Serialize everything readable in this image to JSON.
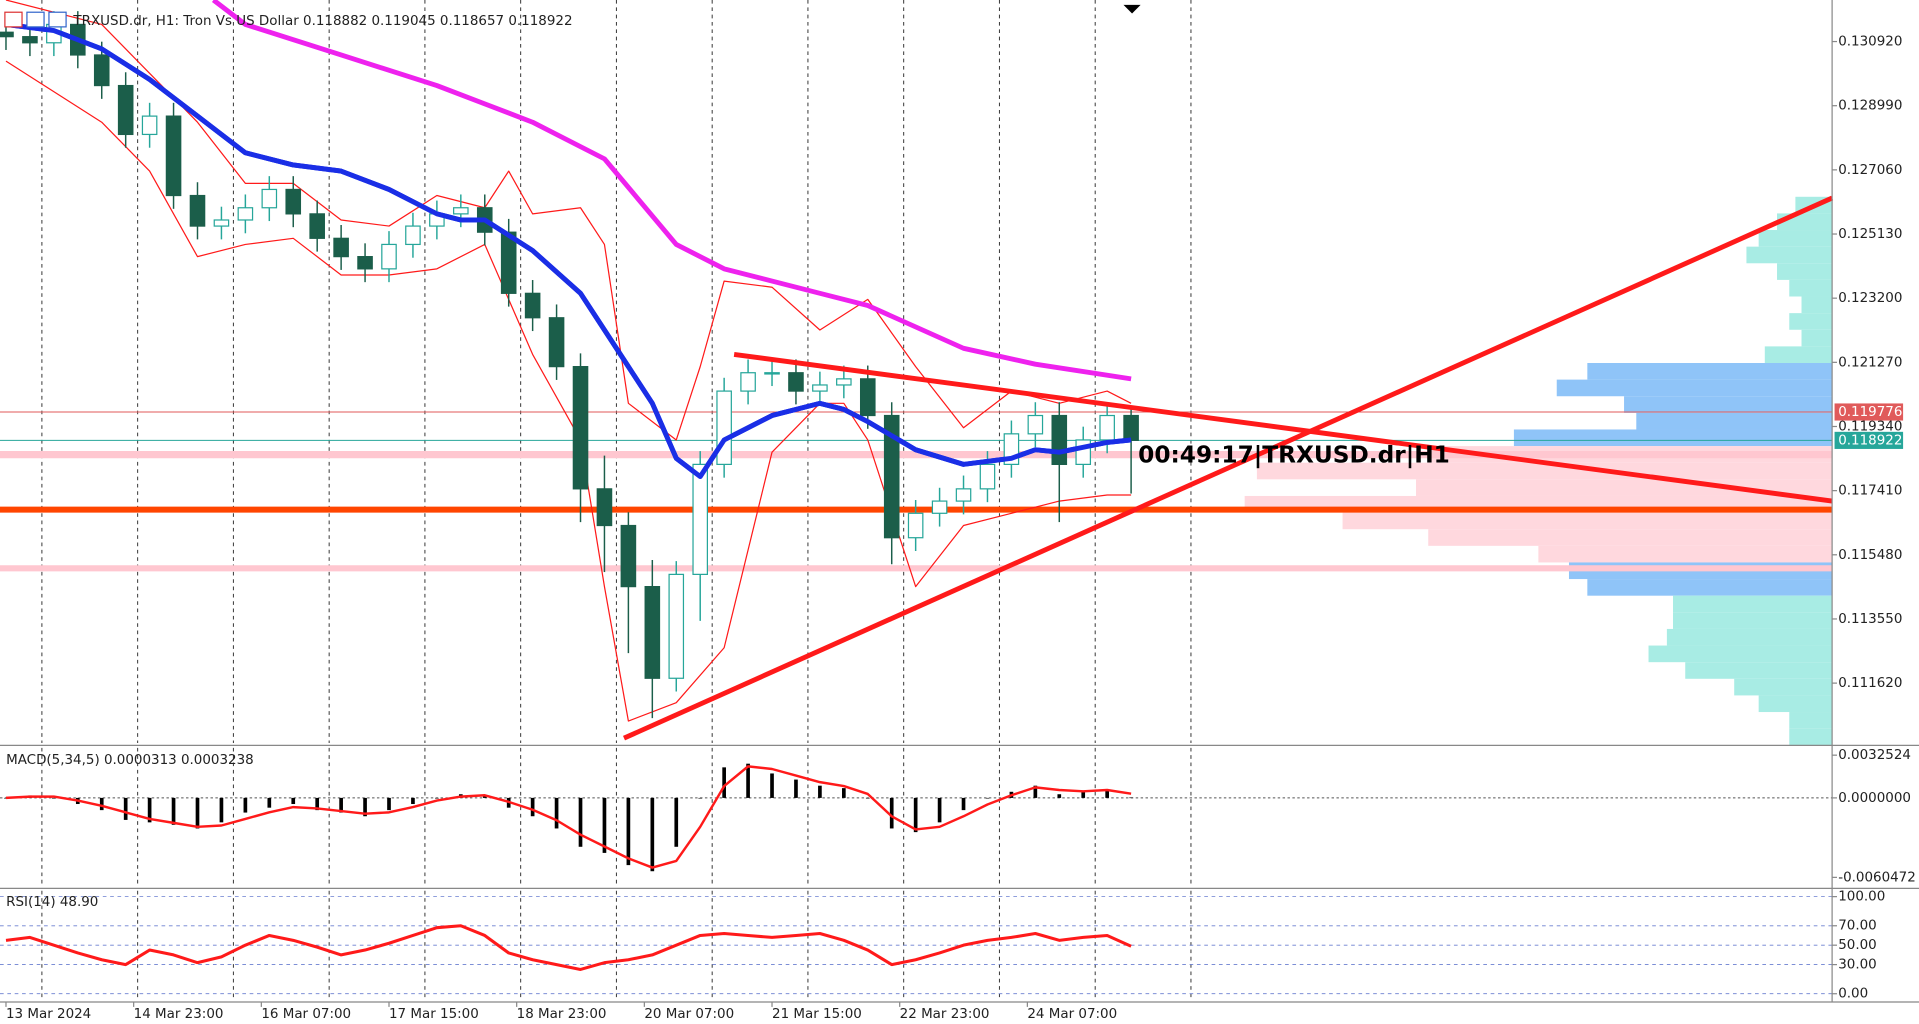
{
  "chart_data": [
    {
      "type": "candlestick",
      "title": "TRXUSD.dr, H1:  Tron Vs US Dollar  0.118882 0.119045 0.118657 0.118922",
      "annotation": "00:49:17|TRXUSD.dr|H1",
      "x": [
        0,
        6,
        12,
        18,
        24,
        30,
        36,
        42,
        48,
        54,
        60,
        66,
        72,
        78,
        84,
        90,
        96,
        102,
        108,
        114,
        120,
        126,
        132,
        138,
        144,
        150,
        156,
        162,
        168,
        174,
        180,
        186,
        192,
        198,
        204,
        210,
        216,
        222,
        228,
        234,
        240,
        246,
        252,
        258,
        264,
        270,
        276,
        282
      ],
      "open": [
        0.1312,
        0.131067,
        0.130883,
        0.131435,
        0.130516,
        0.129596,
        0.128126,
        0.128677,
        0.126288,
        0.125369,
        0.125552,
        0.12592,
        0.126471,
        0.125736,
        0.125001,
        0.12445,
        0.124082,
        0.124817,
        0.125369,
        0.125736,
        0.12592,
        0.125185,
        0.123346,
        0.122611,
        0.121141,
        0.117464,
        0.116361,
        0.114523,
        0.111766,
        0.114891,
        0.1182,
        0.120405,
        0.120957,
        0.120957,
        0.120405,
        0.120589,
        0.120773,
        0.11967,
        0.115994,
        0.116729,
        0.117096,
        0.117464,
        0.1182,
        0.119119,
        0.11967,
        0.1182,
        0.118935,
        0.11967
      ],
      "high": [
        0.1316,
        0.131467,
        0.131835,
        0.131835,
        0.130916,
        0.129996,
        0.129077,
        0.129077,
        0.126688,
        0.125952,
        0.12632,
        0.126871,
        0.126871,
        0.126136,
        0.125401,
        0.12485,
        0.125217,
        0.125769,
        0.126136,
        0.12632,
        0.12632,
        0.125585,
        0.123746,
        0.123011,
        0.121541,
        0.118464,
        0.116761,
        0.115323,
        0.115291,
        0.1186,
        0.120805,
        0.121357,
        0.121357,
        0.121357,
        0.120989,
        0.121173,
        0.121173,
        0.12007,
        0.117129,
        0.117496,
        0.117864,
        0.1186,
        0.119519,
        0.12007,
        0.12007,
        0.119335,
        0.12007,
        0.11997
      ],
      "low": [
        0.130667,
        0.130483,
        0.130483,
        0.130116,
        0.129196,
        0.127726,
        0.127726,
        0.125888,
        0.124969,
        0.124969,
        0.125152,
        0.12552,
        0.125336,
        0.124601,
        0.12405,
        0.123682,
        0.123682,
        0.124417,
        0.124969,
        0.125336,
        0.124785,
        0.122946,
        0.122211,
        0.120741,
        0.116464,
        0.114961,
        0.112523,
        0.110566,
        0.111366,
        0.113491,
        0.1178,
        0.120005,
        0.120557,
        0.120005,
        0.120005,
        0.120189,
        0.11927,
        0.115194,
        0.115594,
        0.116329,
        0.116696,
        0.117064,
        0.1178,
        0.118719,
        0.116464,
        0.1178,
        0.118535,
        0.117322
      ],
      "close": [
        0.131067,
        0.130883,
        0.131435,
        0.130516,
        0.129596,
        0.128126,
        0.128677,
        0.126288,
        0.125369,
        0.125552,
        0.12592,
        0.126471,
        0.125736,
        0.125001,
        0.12445,
        0.124082,
        0.124817,
        0.125369,
        0.125736,
        0.12592,
        0.125185,
        0.123346,
        0.122611,
        0.121141,
        0.117464,
        0.116361,
        0.114523,
        0.111766,
        0.114891,
        0.1182,
        0.120405,
        0.120957,
        0.120957,
        0.120405,
        0.120589,
        0.120773,
        0.11967,
        0.115994,
        0.116729,
        0.117096,
        0.117464,
        0.1182,
        0.119119,
        0.11967,
        0.1182,
        0.118935,
        0.11967,
        0.118922
      ],
      "up_color": "#26a69a",
      "down_color": "#1b5e4a",
      "xlim": [
        -1.5,
        457.7
      ],
      "ylim": [
        0.10982,
        0.13217
      ],
      "xticks": [
        {
          "value": 0,
          "label": "13 Mar 2024"
        },
        {
          "value": 32,
          "label": "14 Mar 23:00"
        },
        {
          "value": 64,
          "label": "16 Mar 07:00"
        },
        {
          "value": 96,
          "label": "17 Mar 15:00"
        },
        {
          "value": 128,
          "label": "18 Mar 23:00"
        },
        {
          "value": 160,
          "label": "20 Mar 07:00"
        },
        {
          "value": 192,
          "label": "21 Mar 15:00"
        },
        {
          "value": 224,
          "label": "22 Mar 23:00"
        },
        {
          "value": 256,
          "label": "24 Mar 07:00"
        }
      ],
      "yticks": [
        {
          "value": 0.13092,
          "label": "0.130920"
        },
        {
          "value": 0.12899,
          "label": "0.128990"
        },
        {
          "value": 0.12706,
          "label": "0.127060"
        },
        {
          "value": 0.12513,
          "label": "0.125130"
        },
        {
          "value": 0.1232,
          "label": "0.123200"
        },
        {
          "value": 0.12127,
          "label": "0.121270"
        },
        {
          "value": 0.11934,
          "label": "0.119340"
        },
        {
          "value": 0.11741,
          "label": "0.117410"
        },
        {
          "value": 0.11548,
          "label": "0.115480"
        },
        {
          "value": 0.11355,
          "label": "0.113550"
        },
        {
          "value": 0.11162,
          "label": "0.111620"
        }
      ],
      "xgrid": [
        9,
        33,
        57,
        81,
        105,
        129,
        153,
        177,
        201,
        225,
        249,
        273,
        297
      ],
      "series": [
        {
          "color": "#ff1a1a",
          "line_width": 1,
          "x": [
            0,
            24,
            48,
            60,
            72,
            84,
            96,
            108,
            120,
            126,
            132,
            144,
            150,
            156,
            168,
            174,
            180,
            192,
            204,
            216,
            228,
            240,
            252,
            264,
            276,
            282
          ],
          "values": [
            0.13217,
            0.131435,
            0.128493,
            0.126655,
            0.126655,
            0.125552,
            0.125369,
            0.126288,
            0.12592,
            0.127023,
            0.125736,
            0.12592,
            0.124817,
            0.120037,
            0.118935,
            0.121141,
            0.123714,
            0.12353,
            0.122243,
            0.123163,
            0.121141,
            0.119302,
            0.120405,
            0.120037,
            0.120405,
            0.120037
          ]
        },
        {
          "color": "#ff1a1a",
          "line_width": 1,
          "x": [
            0,
            24,
            36,
            48,
            60,
            72,
            84,
            96,
            108,
            120,
            132,
            144,
            150,
            156,
            168,
            180,
            192,
            204,
            210,
            216,
            228,
            240,
            252,
            264,
            276,
            282
          ],
          "values": [
            0.130332,
            0.128493,
            0.127023,
            0.12445,
            0.124817,
            0.125001,
            0.123898,
            0.123898,
            0.124082,
            0.124817,
            0.121508,
            0.118935,
            0.114523,
            0.110479,
            0.111031,
            0.112684,
            0.118567,
            0.120037,
            0.120037,
            0.118935,
            0.114523,
            0.116361,
            0.116729,
            0.117096,
            0.11728,
            0.11728
          ]
        },
        {
          "color": "#ee22ee",
          "line_width": 4,
          "x": [
            52,
            60,
            84,
            108,
            120,
            132,
            150,
            168,
            180,
            204,
            216,
            240,
            258,
            282
          ],
          "values": [
            0.13217,
            0.131435,
            0.130516,
            0.129596,
            0.129045,
            0.128493,
            0.127391,
            0.124817,
            0.124082,
            0.123346,
            0.122979,
            0.121692,
            0.121214,
            0.120773
          ]
        },
        {
          "color": "#1a2ee6",
          "line_width": 4,
          "x": [
            0,
            12,
            24,
            36,
            48,
            60,
            72,
            84,
            96,
            108,
            114,
            120,
            132,
            144,
            156,
            162,
            168,
            174,
            180,
            192,
            204,
            210,
            216,
            228,
            240,
            252,
            258,
            264,
            276,
            282
          ],
          "values": [
            0.131435,
            0.131251,
            0.130699,
            0.12978,
            0.128677,
            0.127574,
            0.127207,
            0.127023,
            0.126471,
            0.125736,
            0.125552,
            0.125552,
            0.124633,
            0.123346,
            0.121141,
            0.120037,
            0.118384,
            0.117832,
            0.118935,
            0.11967,
            0.120037,
            0.119854,
            0.119486,
            0.11864,
            0.1182,
            0.118384,
            0.11864,
            0.118567,
            0.118861,
            0.118935
          ]
        }
      ],
      "trendlines": [
        {
          "color": "#ff1a1a",
          "x": [
            182.5,
            457.7
          ],
          "values": [
            0.121508,
            0.117096
          ]
        },
        {
          "color": "#ff1a1a",
          "x": [
            154.9,
            457.7
          ],
          "values": [
            0.109964,
            0.126214
          ]
        }
      ],
      "levels": [
        {
          "value": 0.118494,
          "color": "#ffc7d0",
          "line_width": 6
        },
        {
          "value": 0.115074,
          "color": "#ffc7d0",
          "line_width": 5
        },
        {
          "value": 0.116839,
          "color": "#ff4500",
          "line_width": 5
        }
      ],
      "price_labels": [
        {
          "value": 0.119776,
          "color": "#e05a5a"
        },
        {
          "value": 0.118922,
          "color": "#26a69a"
        }
      ],
      "profile": {
        "lim": [
          0,
          100
        ],
        "levels": [
          0.126,
          0.1255,
          0.125,
          0.1245,
          0.124,
          0.1235,
          0.123,
          0.1225,
          0.122,
          0.1215,
          0.121,
          0.1205,
          0.12,
          0.1195,
          0.119,
          0.1185,
          0.118,
          0.1175,
          0.117,
          0.1165,
          0.116,
          0.1155,
          0.115,
          0.1145,
          0.114,
          0.1135,
          0.113,
          0.1125,
          0.112,
          0.1115,
          0.111,
          0.1105,
          0.11
        ],
        "values": [
          6,
          9,
          12,
          14,
          9,
          7,
          5,
          7,
          5,
          11,
          40,
          45,
          34,
          32,
          52,
          66,
          94,
          68,
          96,
          80,
          66,
          48,
          43,
          40,
          26,
          26,
          27,
          30,
          24,
          16,
          12,
          7,
          7
        ],
        "colors": [
          "#a8ece4",
          "#a8ece4",
          "#a8ece4",
          "#a8ece4",
          "#a8ece4",
          "#a8ece4",
          "#a8ece4",
          "#a8ece4",
          "#a8ece4",
          "#a8ece4",
          "#8fc4f8",
          "#8fc4f8",
          "#8fc4f8",
          "#8fc4f8",
          "#8fc4f8",
          "#ffd8de",
          "#ffd8de",
          "#ffd8de",
          "#ffd8de",
          "#ffd8de",
          "#ffd8de",
          "#ffd8de",
          "#8fc4f8",
          "#8fc4f8",
          "#a8ece4",
          "#a8ece4",
          "#a8ece4",
          "#a8ece4",
          "#a8ece4",
          "#a8ece4",
          "#a8ece4",
          "#a8ece4",
          "#a8ece4"
        ]
      }
    },
    {
      "type": "macd",
      "title": "MACD(5,34,5) 0.0000313 0.0003238",
      "x": [
        0,
        6,
        12,
        18,
        24,
        30,
        36,
        42,
        48,
        54,
        60,
        66,
        72,
        78,
        84,
        90,
        96,
        102,
        108,
        114,
        120,
        126,
        132,
        138,
        144,
        150,
        156,
        162,
        168,
        174,
        180,
        186,
        192,
        198,
        204,
        210,
        216,
        222,
        228,
        234,
        240,
        246,
        252,
        258,
        264,
        270,
        276,
        282
      ],
      "values": [
        0,
        0.000186,
        0,
        -0.000465,
        -0.00093,
        -0.001674,
        -0.00186,
        -0.002046,
        -0.002325,
        -0.00186,
        -0.001116,
        -0.000744,
        -0.000465,
        -0.00093,
        -0.001116,
        -0.001395,
        -0.00093,
        -0.000465,
        0,
        0.000279,
        0.000186,
        -0.000744,
        -0.001395,
        -0.002325,
        -0.00372,
        -0.004185,
        -0.005115,
        -0.00558,
        -0.00372,
        0,
        0.002325,
        0.002604,
        0.00186,
        0.001395,
        0.00093,
        0.000744,
        0,
        -0.002325,
        -0.002604,
        -0.00186,
        -0.00093,
        0,
        0.000465,
        0.00093,
        0.000279,
        0.000465,
        0.000651,
        3.13e-05
      ],
      "color": "#000000",
      "signal": {
        "color": "#ff1a1a",
        "values": [
          0,
          0.0001,
          0.0001,
          -0.0002,
          -0.0006,
          -0.0011,
          -0.0016,
          -0.0019,
          -0.0022,
          -0.0021,
          -0.0016,
          -0.0011,
          -0.0007,
          -0.0008,
          -0.001,
          -0.0012,
          -0.0011,
          -0.0007,
          -0.0002,
          0.0001,
          0.0002,
          -0.0003,
          -0.0009,
          -0.0017,
          -0.0028,
          -0.0037,
          -0.0046,
          -0.0053,
          -0.0048,
          -0.0022,
          0.0009,
          0.0024,
          0.0022,
          0.0017,
          0.0012,
          0.0009,
          0.0003,
          -0.0014,
          -0.0024,
          -0.0022,
          -0.0014,
          -0.0005,
          0.0002,
          0.0008,
          0.0006,
          0.0005,
          0.0006,
          0.0003238
        ]
      },
      "xlim": [
        -1.5,
        457.7
      ],
      "ylim": [
        -0.0066982,
        0.0038104
      ],
      "yticks": [
        0.0032524,
        {
          "value": 0,
          "label": "0.0000000"
        },
        -0.0060472
      ]
    },
    {
      "type": "rsi",
      "title": "RSI(14) 48.90",
      "x": [
        0,
        6,
        12,
        18,
        24,
        30,
        36,
        42,
        48,
        54,
        60,
        66,
        72,
        78,
        84,
        90,
        96,
        102,
        108,
        114,
        120,
        126,
        132,
        138,
        144,
        150,
        156,
        162,
        168,
        174,
        180,
        186,
        192,
        198,
        204,
        210,
        216,
        222,
        228,
        234,
        240,
        246,
        252,
        258,
        264,
        270,
        276,
        282
      ],
      "values": [
        55,
        58,
        50,
        42,
        35,
        30,
        45,
        40,
        32,
        38,
        50,
        60,
        55,
        48,
        40,
        45,
        52,
        60,
        68,
        70,
        60,
        42,
        35,
        30,
        25,
        32,
        35,
        40,
        50,
        60,
        62,
        60,
        58,
        60,
        62,
        55,
        45,
        30,
        35,
        42,
        50,
        55,
        58,
        62,
        55,
        58,
        60,
        48.9
      ],
      "color": "#ff1a1a",
      "xlim": [
        -1.5,
        457.7
      ],
      "ylim": [
        -6,
        106
      ],
      "yticks": [
        {
          "value": 100,
          "label": "100.00"
        },
        {
          "value": 70,
          "label": "70.00"
        },
        {
          "value": 50,
          "label": "50.00"
        },
        {
          "value": 30,
          "label": "30.00"
        },
        {
          "value": 0,
          "label": "0.00"
        }
      ],
      "grid": true
    }
  ]
}
